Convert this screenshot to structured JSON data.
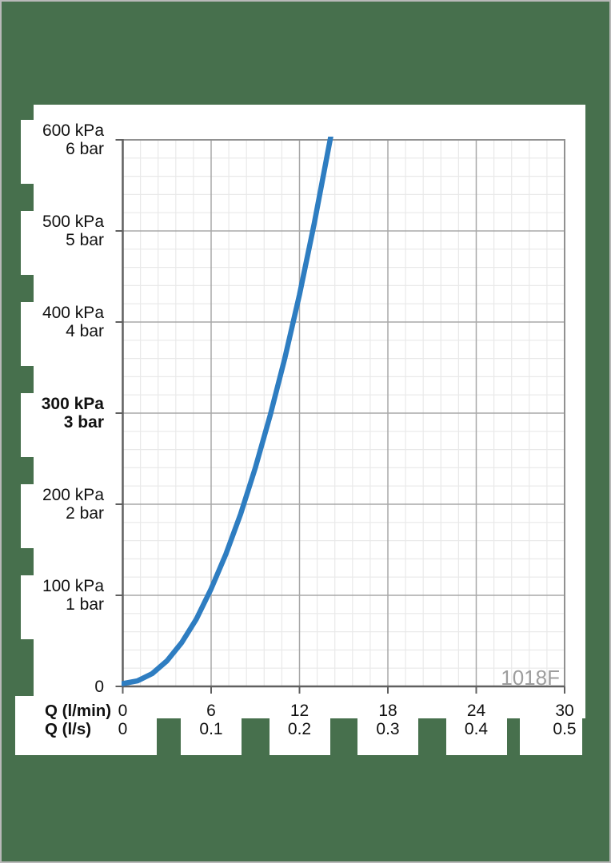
{
  "colors": {
    "background": "#47704d",
    "panel": "#ffffff",
    "frame_border": "#b9b9b9",
    "grid_minor": "#e9e9e9",
    "grid_major": "#a8a8a8",
    "plot_border": "#919191",
    "axis": "#606060",
    "curve": "#2e7dc1",
    "annotation_text": "#9d9d9d",
    "label_text": "#111111"
  },
  "chart_data": {
    "type": "line",
    "title": "",
    "description": "Pressure loss vs flow rate curve",
    "annotation": "1018F",
    "grid": true,
    "legend": false,
    "x_axis": {
      "primary": {
        "label": "Q (l/min)",
        "min": 0,
        "max": 30,
        "major_ticks": [
          0,
          6,
          12,
          18,
          24,
          30
        ],
        "tick_labels": [
          "0",
          "6",
          "12",
          "18",
          "24",
          "30"
        ],
        "minor_step": 1.2
      },
      "secondary": {
        "label": "Q (l/s)",
        "min": 0,
        "max": 0.5,
        "tick_labels": [
          "0",
          "0.1",
          "0.2",
          "0.3",
          "0.4",
          "0.5"
        ]
      }
    },
    "y_axis": {
      "unit_primary": "kPa",
      "unit_secondary": "bar",
      "min": 0,
      "max": 600,
      "major_step": 100,
      "minor_step": 20,
      "zero_label": "0",
      "tick_labels": [
        {
          "value": 600,
          "kpa": "600 kPa",
          "bar": "6 bar",
          "bold": false
        },
        {
          "value": 500,
          "kpa": "500 kPa",
          "bar": "5 bar",
          "bold": false
        },
        {
          "value": 400,
          "kpa": "400 kPa",
          "bar": "4 bar",
          "bold": false
        },
        {
          "value": 300,
          "kpa": "300 kPa",
          "bar": "3 bar",
          "bold": true
        },
        {
          "value": 200,
          "kpa": "200 kPa",
          "bar": "2 bar",
          "bold": false
        },
        {
          "value": 100,
          "kpa": "100 kPa",
          "bar": "1 bar",
          "bold": false
        }
      ]
    },
    "series": [
      {
        "name": "pressure-loss-curve",
        "color": "#2e7dc1",
        "points_lmin_kpa": [
          [
            0,
            0
          ],
          [
            1,
            3
          ],
          [
            2,
            11
          ],
          [
            3,
            25
          ],
          [
            4,
            45
          ],
          [
            5,
            71
          ],
          [
            6,
            104
          ],
          [
            7,
            142
          ],
          [
            8,
            186
          ],
          [
            9,
            237
          ],
          [
            10,
            294
          ],
          [
            11,
            357
          ],
          [
            12,
            427
          ],
          [
            13,
            505
          ],
          [
            14,
            590
          ],
          [
            14.35,
            620
          ]
        ]
      }
    ]
  }
}
